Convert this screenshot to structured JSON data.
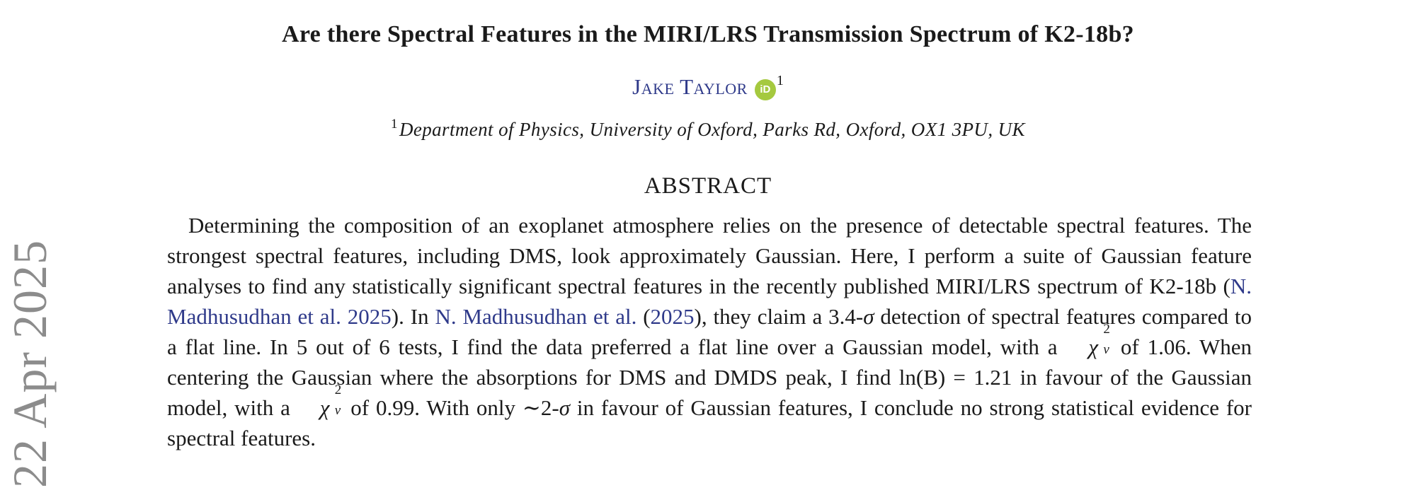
{
  "margin_stamp": {
    "date": "22 Apr 2025"
  },
  "header": {
    "title": "Are there Spectral Features in the MIRI/LRS Transmission Spectrum of K2-18b?",
    "author": "Jake Taylor",
    "orcid_icon_text": "iD",
    "author_affil_mark": "1",
    "affiliation_mark": "1",
    "affiliation": "Department of Physics, University of Oxford, Parks Rd, Oxford, OX1 3PU, UK"
  },
  "abstract": {
    "heading": "ABSTRACT",
    "seg1": "Determining the composition of an exoplanet atmosphere relies on the presence of detectable spectral features. The strongest spectral features, including DMS, look approximately Gaussian. Here, I perform a suite of Gaussian feature analyses to find any statistically significant spectral features in the recently published MIRI/LRS spectrum of K2-18b (",
    "cite1": "N. Madhusudhan et al. 2025",
    "seg2": "). In ",
    "cite2_author": "N. Madhusudhan et al.",
    "seg3": " (",
    "cite2_year": "2025",
    "seg4": "), they claim a 3.4-",
    "sigma": "σ",
    "seg5": " detection of spectral features compared to a flat line. In 5 out of 6 tests, I find the data preferred a flat line over a Gaussian model, with a ",
    "chi": "χ",
    "chi_sup": "2",
    "chi_sub": "ν",
    "seg6": " of 1.06. When centering the Gaussian where the absorptions for DMS and DMDS peak, I find ln(B) = 1.21 in favour of the Gaussian model, with a ",
    "seg7": " of 0.99. With only ∼2-",
    "seg8": " in favour of Gaussian features, I conclude no strong statistical evidence for spectral features."
  }
}
